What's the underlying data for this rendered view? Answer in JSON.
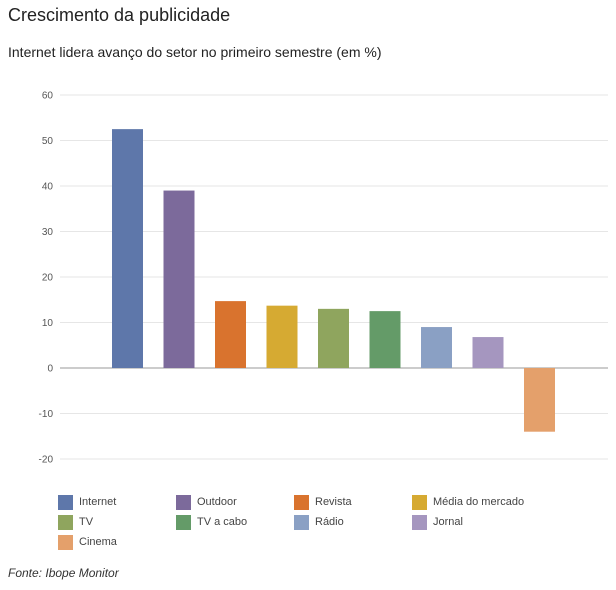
{
  "chart_data": {
    "type": "bar",
    "title": "Crescimento da publicidade",
    "subtitle": "Internet lidera avanço do setor no primeiro semestre (em %)",
    "categories": [
      "Internet",
      "Outdoor",
      "Revista",
      "Média do mercado",
      "TV",
      "TV a cabo",
      "Rádio",
      "Jornal",
      "Cinema"
    ],
    "values": [
      52.5,
      39,
      14.7,
      13.7,
      13,
      12.5,
      9,
      6.8,
      -14
    ],
    "colors": [
      "#5e77aa",
      "#7c6a9b",
      "#d9732e",
      "#d6aa32",
      "#8fa55e",
      "#649b68",
      "#8aa0c4",
      "#a596bf",
      "#e4a06b"
    ],
    "ylim": [
      -20,
      60
    ],
    "yticks": [
      60,
      50,
      40,
      30,
      20,
      10,
      0,
      -10,
      -20
    ],
    "xlabel": "",
    "ylabel": "",
    "grid": true,
    "legend": "bottom"
  },
  "source": "Fonte: Ibope Monitor"
}
